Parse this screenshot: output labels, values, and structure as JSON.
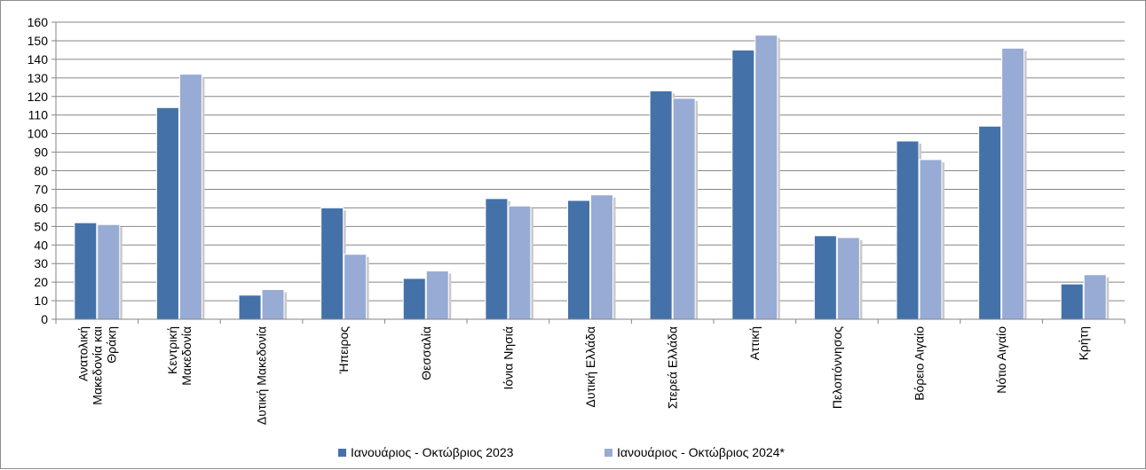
{
  "chart_data": {
    "type": "bar",
    "title": "",
    "xlabel": "",
    "ylabel": "",
    "ylim": [
      0,
      160
    ],
    "y_ticks": [
      0,
      10,
      20,
      30,
      40,
      50,
      60,
      70,
      80,
      90,
      100,
      110,
      120,
      130,
      140,
      150,
      160
    ],
    "grid": true,
    "legend_position": "bottom",
    "categories": [
      [
        "Ανατολική",
        "Μακεδονία και",
        "Θράκη"
      ],
      [
        "Κεντρική",
        "Μακεδονία"
      ],
      [
        "Δυτική Μακεδονία"
      ],
      [
        "Ήπειρος"
      ],
      [
        "Θεσσαλία"
      ],
      [
        "Ιόνια Νησιά"
      ],
      [
        "Δυτική Ελλάδα"
      ],
      [
        "Στερεά Ελλάδα"
      ],
      [
        "Αττική"
      ],
      [
        "Πελοπόννησος"
      ],
      [
        "Βόρειο Αιγαίο"
      ],
      [
        "Νότιο Αιγαίο"
      ],
      [
        "Κρήτη"
      ]
    ],
    "series": [
      {
        "name": "Ιανουάριος - Οκτώβριος 2023",
        "color": "#4472a8",
        "values": [
          52,
          114,
          13,
          60,
          22,
          65,
          64,
          123,
          145,
          45,
          96,
          104,
          19
        ]
      },
      {
        "name": "Ιανουάριος - Οκτώβριος 2024*",
        "color": "#98abd4",
        "values": [
          51,
          132,
          16,
          35,
          26,
          61,
          67,
          119,
          153,
          44,
          86,
          146,
          24
        ]
      }
    ]
  }
}
